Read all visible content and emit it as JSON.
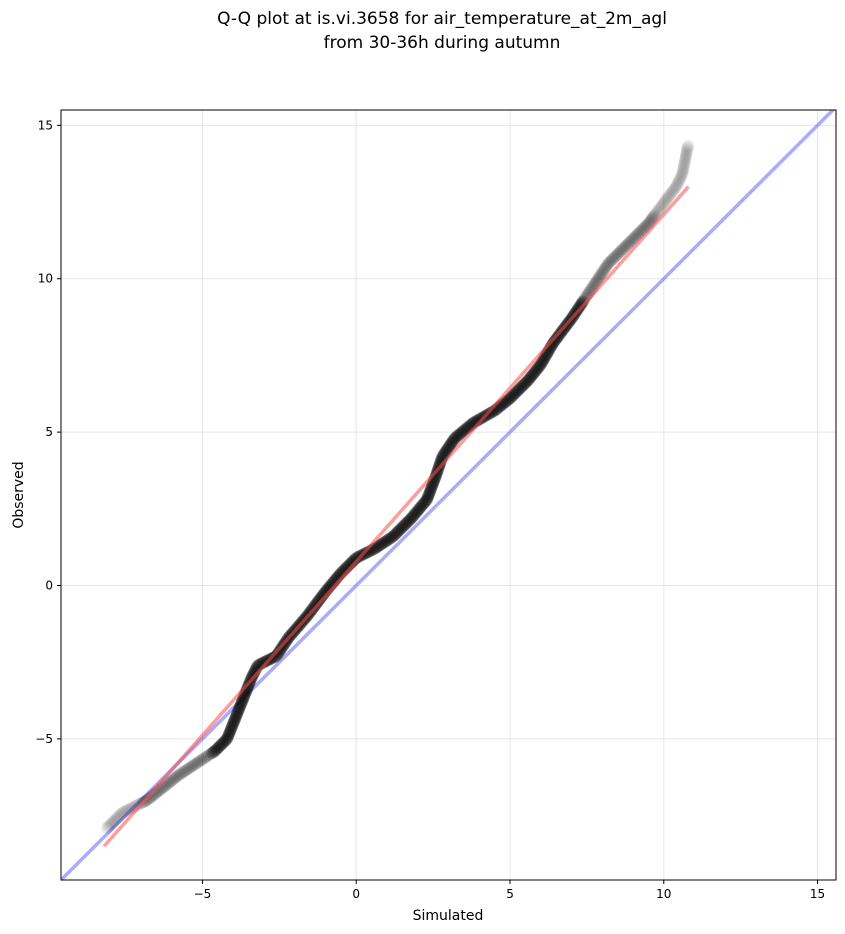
{
  "chart_data": {
    "type": "scatter",
    "title": "Q-Q plot at is.vi.3658 for air_temperature_at_2m_agl",
    "subtitle": "from 30-36h during autumn",
    "xlabel": "Simulated",
    "ylabel": "Observed",
    "xlim": [
      -9.6,
      15.6
    ],
    "ylim": [
      -9.6,
      15.5
    ],
    "xticks": [
      -5,
      0,
      5,
      10,
      15
    ],
    "yticks": [
      -5,
      0,
      5,
      10,
      15
    ],
    "xtick_labels": [
      "−5",
      "0",
      "5",
      "10",
      "15"
    ],
    "ytick_labels": [
      "−5",
      "0",
      "5",
      "10",
      "15"
    ],
    "grid": true,
    "colors": {
      "points": "#000000",
      "fit_line": "#ff4d4d",
      "identity_line": "#6666ee"
    },
    "fit_line": {
      "x": [
        -8.2,
        10.8
      ],
      "y": [
        -8.5,
        13.0
      ]
    },
    "identity_line": {
      "x": [
        -9.6,
        15.6
      ],
      "y": [
        -9.6,
        15.6
      ]
    },
    "anchors": [
      [
        -8.1,
        -7.9
      ],
      [
        -7.6,
        -7.4
      ],
      [
        -7.2,
        -7.2
      ],
      [
        -6.8,
        -7.0
      ],
      [
        -6.3,
        -6.6
      ],
      [
        -5.8,
        -6.2
      ],
      [
        -5.2,
        -5.8
      ],
      [
        -4.6,
        -5.4
      ],
      [
        -4.2,
        -5.0
      ],
      [
        -4.0,
        -4.5
      ],
      [
        -3.8,
        -4.0
      ],
      [
        -3.6,
        -3.5
      ],
      [
        -3.4,
        -3.0
      ],
      [
        -3.2,
        -2.6
      ],
      [
        -2.6,
        -2.3
      ],
      [
        -2.2,
        -1.7
      ],
      [
        -1.6,
        -1.0
      ],
      [
        -1.0,
        -0.2
      ],
      [
        -0.5,
        0.4
      ],
      [
        0.0,
        0.9
      ],
      [
        0.6,
        1.2
      ],
      [
        1.2,
        1.6
      ],
      [
        1.8,
        2.2
      ],
      [
        2.3,
        2.8
      ],
      [
        2.6,
        3.6
      ],
      [
        2.8,
        4.2
      ],
      [
        3.2,
        4.8
      ],
      [
        3.8,
        5.3
      ],
      [
        4.5,
        5.7
      ],
      [
        5.0,
        6.1
      ],
      [
        5.6,
        6.7
      ],
      [
        6.0,
        7.2
      ],
      [
        6.4,
        7.9
      ],
      [
        7.0,
        8.7
      ],
      [
        7.6,
        9.6
      ],
      [
        8.2,
        10.5
      ],
      [
        8.8,
        11.1
      ],
      [
        9.5,
        11.8
      ],
      [
        10.1,
        12.6
      ],
      [
        10.4,
        13.0
      ],
      [
        10.6,
        13.4
      ],
      [
        10.7,
        13.9
      ],
      [
        10.8,
        14.4
      ]
    ]
  }
}
